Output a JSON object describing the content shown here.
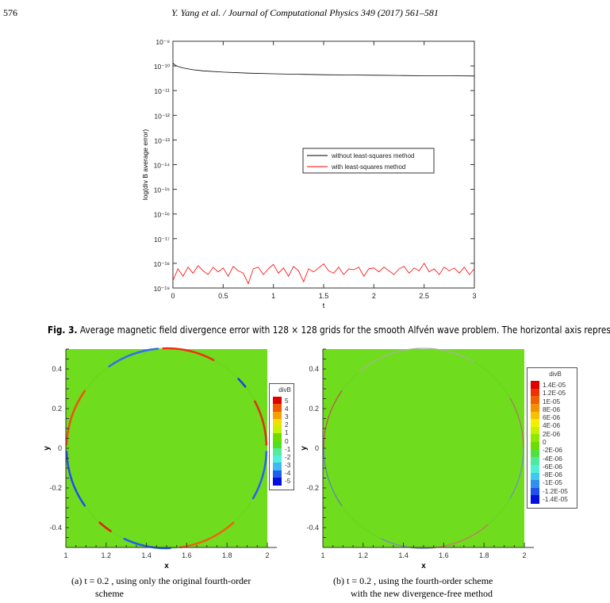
{
  "header": {
    "page_number": "576",
    "running_title": "Y. Yang et al. / Journal of Computational Physics 349 (2017) 561–581"
  },
  "figure3": {
    "label": "Fig. 3.",
    "caption": " Average magnetic field divergence error with 128 × 128 grids for the smooth Alfvén wave problem. The horizontal axis represents time."
  },
  "chart_data": [
    {
      "type": "line",
      "title": "",
      "xlabel": "t",
      "ylabel": "log(div B average error)",
      "xlim": [
        0,
        3
      ],
      "ylim": [
        1e-19,
        1e-09
      ],
      "yscale": "log",
      "grid": false,
      "x_ticks": [
        "0",
        "0.5",
        "1",
        "1.5",
        "2",
        "2.5",
        "3"
      ],
      "y_ticks": [
        "10⁻⁹",
        "10⁻¹⁰",
        "10⁻¹¹",
        "10⁻¹²",
        "10⁻¹³",
        "10⁻¹⁴",
        "10⁻¹⁵",
        "10⁻¹⁶",
        "10⁻¹⁷",
        "10⁻¹⁸",
        "10⁻¹⁹"
      ],
      "legend_position": "center-right",
      "series": [
        {
          "name": "without least-squares method",
          "color": "#000000",
          "x": [
            0,
            0.02,
            0.05,
            0.1,
            0.2,
            0.3,
            0.5,
            0.75,
            1.0,
            1.25,
            1.5,
            1.75,
            2.0,
            2.25,
            2.5,
            2.75,
            3.0
          ],
          "y": [
            1.3e-10,
            1.1e-10,
            9.5e-11,
            8.3e-11,
            7e-11,
            6.3e-11,
            5.6e-11,
            5.1e-11,
            4.8e-11,
            4.6e-11,
            4.4e-11,
            4.3e-11,
            4.2e-11,
            4.1e-11,
            4e-11,
            4e-11,
            3.9e-11
          ]
        },
        {
          "name": "with least-squares method",
          "color": "#ff0000",
          "x": [
            0,
            0.05,
            0.1,
            0.15,
            0.2,
            0.25,
            0.3,
            0.35,
            0.4,
            0.45,
            0.5,
            0.55,
            0.6,
            0.65,
            0.7,
            0.75,
            0.8,
            0.85,
            0.9,
            0.95,
            1.0,
            1.05,
            1.1,
            1.15,
            1.2,
            1.25,
            1.3,
            1.35,
            1.4,
            1.45,
            1.5,
            1.55,
            1.6,
            1.65,
            1.7,
            1.75,
            1.8,
            1.85,
            1.9,
            1.95,
            2.0,
            2.05,
            2.1,
            2.15,
            2.2,
            2.25,
            2.3,
            2.35,
            2.4,
            2.45,
            2.5,
            2.55,
            2.6,
            2.65,
            2.7,
            2.75,
            2.8,
            2.85,
            2.9,
            2.95,
            3.0
          ],
          "y": [
            2e-19,
            6e-19,
            3e-19,
            7e-19,
            4e-19,
            8e-19,
            5e-19,
            3.5e-19,
            7e-19,
            4.5e-19,
            6.5e-19,
            3e-19,
            7.5e-19,
            5e-19,
            4e-19,
            1.5e-19,
            6e-19,
            7e-19,
            3.5e-19,
            6e-19,
            9e-19,
            4e-19,
            6.5e-19,
            3e-19,
            7.5e-19,
            5e-19,
            1.8e-19,
            6e-19,
            4.5e-19,
            6.5e-19,
            9.5e-19,
            5e-19,
            4e-19,
            7e-19,
            3.5e-19,
            6e-19,
            5.5e-19,
            7e-19,
            3e-19,
            6e-19,
            6.5e-19,
            4.5e-19,
            7e-19,
            5e-19,
            3.5e-19,
            6e-19,
            7.5e-19,
            4e-19,
            6.5e-19,
            5e-19,
            1e-18,
            4.5e-19,
            6e-19,
            3.5e-19,
            7e-19,
            5e-19,
            6.5e-19,
            4e-19,
            7e-19,
            3.5e-19,
            6e-19
          ]
        }
      ]
    },
    {
      "type": "heatmap",
      "title": "",
      "xlabel": "x",
      "ylabel": "y",
      "xlim": [
        1,
        2
      ],
      "ylim": [
        -0.5,
        0.5
      ],
      "x_ticks": [
        "1",
        "1.2",
        "1.4",
        "1.6",
        "1.8",
        "2"
      ],
      "y_ticks": [
        "0.4",
        "0.2",
        "0",
        "-0.2",
        "-0.4"
      ],
      "background_color": "#6fdc1e",
      "legend_title": "divB",
      "legend_position": "right",
      "legend_levels": [
        "5",
        "4",
        "3",
        "2",
        "1",
        "0",
        "-1",
        "-2",
        "-3",
        "-4",
        "-5"
      ],
      "legend_colors": [
        "#e00000",
        "#f05a00",
        "#f5a000",
        "#f0e000",
        "#c8f000",
        "#6edc00",
        "#50e020",
        "#55eaa0",
        "#50f0e0",
        "#40b8f0",
        "#2060f0",
        "#0010e0"
      ]
    },
    {
      "type": "heatmap",
      "title": "",
      "xlabel": "x",
      "ylabel": "y",
      "xlim": [
        1,
        2
      ],
      "ylim": [
        -0.5,
        0.5
      ],
      "x_ticks": [
        "1",
        "1.2",
        "1.4",
        "1.6",
        "1.8",
        "2"
      ],
      "y_ticks": [
        "0.4",
        "0.2",
        "0",
        "-0.2",
        "-0.4"
      ],
      "background_color": "#6fdc1e",
      "legend_title": "divB",
      "legend_position": "right",
      "legend_levels": [
        "1.4E-05",
        "1.2E-05",
        "1E-05",
        "8E-06",
        "6E-06",
        "4E-06",
        "2E-06",
        "0",
        "-2E-06",
        "-4E-06",
        "-6E-06",
        "-8E-06",
        "-1E-05",
        "-1.2E-05",
        "-1.4E-05"
      ],
      "legend_colors": [
        "#e00000",
        "#f03000",
        "#f06000",
        "#f59000",
        "#f8c000",
        "#f0f000",
        "#c8f000",
        "#90e800",
        "#6edc00",
        "#50e040",
        "#50e8a0",
        "#50f0d8",
        "#40c8f0",
        "#3090f0",
        "#2050f0",
        "#0010e0"
      ]
    }
  ],
  "subcaptions": {
    "a_line1": "(a)   t = 0.2 , using only the original fourth-order",
    "a_line2": "scheme",
    "b_line1": "(b)   t = 0.2 , using the fourth-order scheme",
    "b_line2": "with the new divergence-free method"
  }
}
